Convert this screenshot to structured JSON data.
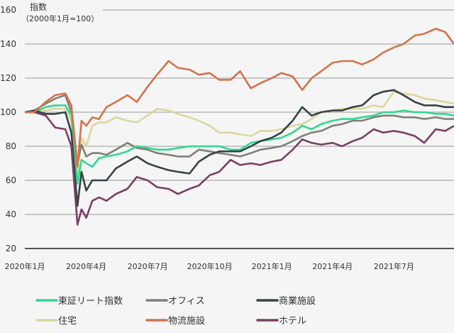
{
  "chart_data": {
    "type": "line",
    "title": "指数",
    "subtitle": "（2000年1月=100）",
    "ylim": [
      20,
      160
    ],
    "yticks": [
      20,
      40,
      60,
      80,
      100,
      120,
      140,
      160
    ],
    "xticks": [
      {
        "date": "2020-01-01",
        "label": "2020年1月"
      },
      {
        "date": "2020-04-01",
        "label": "2020年4月"
      },
      {
        "date": "2020-07-01",
        "label": "2020年7月"
      },
      {
        "date": "2020-10-01",
        "label": "2020年10月"
      },
      {
        "date": "2021-01-01",
        "label": "2021年1月"
      },
      {
        "date": "2021-04-01",
        "label": "2021年4月"
      },
      {
        "date": "2021-07-01",
        "label": "2021年7月"
      }
    ],
    "xlim": [
      "2020-01-01",
      "2021-09-28"
    ],
    "grid": true,
    "legend_position": "bottom",
    "x": [
      "2020-01-01",
      "2020-01-15",
      "2020-02-01",
      "2020-02-15",
      "2020-03-01",
      "2020-03-10",
      "2020-03-19",
      "2020-03-25",
      "2020-04-01",
      "2020-04-10",
      "2020-04-20",
      "2020-05-01",
      "2020-05-15",
      "2020-06-01",
      "2020-06-15",
      "2020-07-01",
      "2020-07-15",
      "2020-08-01",
      "2020-08-15",
      "2020-09-01",
      "2020-09-15",
      "2020-10-01",
      "2020-10-15",
      "2020-11-01",
      "2020-11-15",
      "2020-12-01",
      "2020-12-15",
      "2021-01-01",
      "2021-01-15",
      "2021-02-01",
      "2021-02-15",
      "2021-03-01",
      "2021-03-15",
      "2021-04-01",
      "2021-04-15",
      "2021-05-01",
      "2021-05-15",
      "2021-06-01",
      "2021-06-15",
      "2021-07-01",
      "2021-07-15",
      "2021-08-01",
      "2021-08-15",
      "2021-09-01",
      "2021-09-15",
      "2021-09-28"
    ],
    "series": [
      {
        "name": "東証リート指数",
        "color": "#2fd98f",
        "values": [
          100,
          100,
          103,
          104,
          104,
          98,
          58,
          72,
          70,
          68,
          73,
          74,
          75,
          77,
          80,
          79,
          78,
          78,
          79,
          80,
          80,
          80,
          80,
          78,
          78,
          82,
          83,
          84,
          85,
          88,
          92,
          90,
          93,
          95,
          96,
          96,
          97,
          98,
          100,
          100,
          101,
          100,
          100,
          99,
          99,
          98
        ]
      },
      {
        "name": "オフィス",
        "color": "#7f7f7b",
        "values": [
          100,
          101,
          105,
          108,
          110,
          100,
          70,
          81,
          74,
          76,
          76,
          75,
          78,
          82,
          79,
          78,
          76,
          75,
          74,
          74,
          78,
          77,
          76,
          75,
          74,
          76,
          78,
          79,
          80,
          83,
          86,
          88,
          89,
          92,
          93,
          95,
          95,
          97,
          98,
          98,
          97,
          97,
          96,
          97,
          96,
          96
        ]
      },
      {
        "name": "商業施設",
        "color": "#364345",
        "values": [
          100,
          101,
          99,
          99,
          100,
          88,
          45,
          65,
          54,
          60,
          60,
          60,
          67,
          71,
          74,
          70,
          68,
          66,
          65,
          64,
          71,
          75,
          77,
          77,
          77,
          80,
          83,
          85,
          88,
          95,
          103,
          98,
          100,
          101,
          101,
          103,
          104,
          110,
          112,
          113,
          110,
          106,
          104,
          104,
          103,
          103
        ]
      },
      {
        "name": "住宅",
        "color": "#dcd79c",
        "values": [
          100,
          100,
          101,
          102,
          102,
          95,
          63,
          85,
          80,
          92,
          94,
          94,
          97,
          95,
          94,
          98,
          102,
          101,
          99,
          97,
          95,
          92,
          88,
          88,
          87,
          86,
          89,
          89,
          90,
          92,
          93,
          96,
          100,
          101,
          102,
          102,
          102,
          104,
          103,
          112,
          111,
          110,
          108,
          107,
          106,
          105
        ]
      },
      {
        "name": "物流施設",
        "color": "#d3734b",
        "values": [
          100,
          100,
          106,
          110,
          111,
          104,
          68,
          95,
          92,
          97,
          96,
          103,
          106,
          110,
          106,
          115,
          122,
          130,
          126,
          125,
          122,
          123,
          119,
          119,
          124,
          114,
          117,
          120,
          123,
          121,
          113,
          120,
          124,
          129,
          130,
          130,
          128,
          131,
          135,
          138,
          140,
          145,
          146,
          149,
          147,
          140
        ]
      },
      {
        "name": "ホテル",
        "color": "#7a3f66",
        "values": [
          100,
          100,
          98,
          91,
          90,
          80,
          34,
          43,
          38,
          48,
          50,
          48,
          52,
          55,
          62,
          60,
          56,
          55,
          52,
          55,
          57,
          63,
          65,
          72,
          69,
          70,
          69,
          71,
          72,
          78,
          84,
          82,
          81,
          82,
          80,
          83,
          85,
          90,
          88,
          89,
          88,
          86,
          82,
          90,
          89,
          92
        ]
      }
    ]
  },
  "legend": [
    {
      "label": "東証リート指数",
      "color": "#2fd98f"
    },
    {
      "label": "オフィス",
      "color": "#7f7f7b"
    },
    {
      "label": "商業施設",
      "color": "#364345"
    },
    {
      "label": "住宅",
      "color": "#dcd79c"
    },
    {
      "label": "物流施設",
      "color": "#d3734b"
    },
    {
      "label": "ホテル",
      "color": "#7a3f66"
    }
  ]
}
